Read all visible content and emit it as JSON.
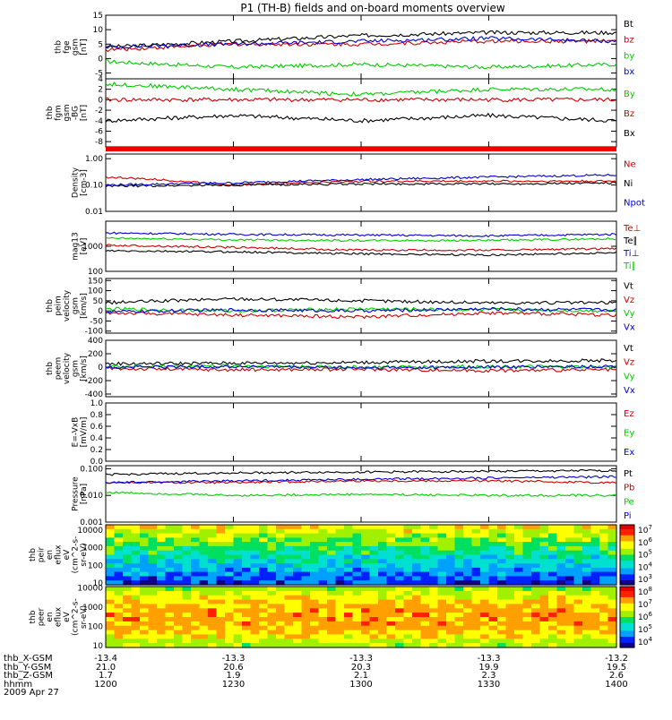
{
  "title": "P1 (TH-B) fields and on-board moments overview",
  "x_axis": {
    "label_rows": [
      "thb_X-GSM",
      "thb_Y-GSM",
      "thb_Z-GSM",
      "hhmm",
      "2009 Apr 27"
    ],
    "ticks": [
      {
        "values": [
          "-13.4",
          "21.0",
          "1.7",
          "1200"
        ]
      },
      {
        "values": [
          "-13.3",
          "20.6",
          "1.9",
          "1230"
        ]
      },
      {
        "values": [
          "-13.3",
          "20.3",
          "2.1",
          "1300"
        ]
      },
      {
        "values": [
          "-13.3",
          "19.9",
          "2.3",
          "1330"
        ]
      },
      {
        "values": [
          "-13.2",
          "19.5",
          "2.6",
          "1400"
        ]
      }
    ]
  },
  "colors": {
    "black": "#000000",
    "red": "#cc0000",
    "green": "#00cc00",
    "blue": "#0000cc"
  },
  "chart_data": [
    {
      "type": "line",
      "ylabel_lines": [
        "thb",
        "fge",
        "gsm",
        "[nT]"
      ],
      "ylim": [
        -7,
        15
      ],
      "yticks": [
        15,
        10,
        5,
        0,
        -5
      ],
      "x": [
        "1200",
        "1230",
        "1300",
        "1330",
        "1400"
      ],
      "series": [
        {
          "name": "Bt",
          "color": "#000000",
          "values": [
            4,
            6,
            8,
            9,
            9
          ]
        },
        {
          "name": "bz",
          "color": "#cc0000",
          "values": [
            3,
            5,
            5,
            6,
            6
          ]
        },
        {
          "name": "by",
          "color": "#00cc00",
          "values": [
            -1,
            -3,
            -2,
            -3,
            -2
          ]
        },
        {
          "name": "bx",
          "color": "#0000cc",
          "values": [
            4,
            5,
            6,
            7,
            6
          ]
        }
      ]
    },
    {
      "type": "line",
      "ylabel_lines": [
        "thb",
        "fgm",
        "gsm",
        "-BG",
        "[nT]"
      ],
      "ylim": [
        -9,
        4
      ],
      "yticks": [
        4,
        2,
        0,
        -2,
        -4,
        -6,
        -8
      ],
      "x": [
        "1200",
        "1230",
        "1300",
        "1330",
        "1400"
      ],
      "series": [
        {
          "name": "By",
          "color": "#00cc00",
          "values": [
            3,
            2,
            1,
            2,
            2
          ]
        },
        {
          "name": "Bz",
          "color": "#cc0000",
          "values": [
            0,
            0,
            0,
            0,
            0
          ]
        },
        {
          "name": "Bx",
          "color": "#000000",
          "values": [
            -4,
            -3,
            -4,
            -3,
            -4
          ]
        }
      ]
    },
    {
      "type": "line",
      "ylog": true,
      "ylabel_lines": [
        "Density",
        "[cm-3]"
      ],
      "ylim": [
        0.01,
        1.5
      ],
      "yticks": [
        "1.00",
        "0.10",
        "0.01"
      ],
      "x": [
        "1200",
        "1230",
        "1300",
        "1330",
        "1400"
      ],
      "series": [
        {
          "name": "Ne",
          "color": "#cc0000",
          "values": [
            0.2,
            0.1,
            0.14,
            0.14,
            0.14
          ]
        },
        {
          "name": "Ni",
          "color": "#000000",
          "values": [
            0.09,
            0.1,
            0.11,
            0.11,
            0.12
          ]
        },
        {
          "name": "Npot",
          "color": "#0000cc",
          "values": [
            0.1,
            0.12,
            0.16,
            0.2,
            0.24
          ]
        }
      ]
    },
    {
      "type": "line",
      "ylog": true,
      "ylabel_lines": [
        "mag13",
        "[eV]"
      ],
      "ylim": [
        100,
        10000
      ],
      "yticks": [
        "1000",
        "100"
      ],
      "x": [
        "1200",
        "1230",
        "1300",
        "1330",
        "1400"
      ],
      "series": [
        {
          "name": "Te⊥",
          "color": "#cc0000",
          "values": [
            1100,
            900,
            700,
            700,
            800
          ]
        },
        {
          "name": "Te∥",
          "color": "#000000",
          "values": [
            650,
            600,
            500,
            450,
            550
          ]
        },
        {
          "name": "Ti⊥",
          "color": "#0000cc",
          "values": [
            3400,
            3000,
            2800,
            2600,
            3000
          ]
        },
        {
          "name": "Ti∥",
          "color": "#00cc00",
          "values": [
            2100,
            1800,
            1700,
            1700,
            2000
          ]
        }
      ]
    },
    {
      "type": "line",
      "ylabel_lines": [
        "thb",
        "peim",
        "velocity",
        "gsm",
        "[km/s]"
      ],
      "ylim": [
        -110,
        160
      ],
      "yticks": [
        150,
        100,
        50,
        0,
        -50,
        -100
      ],
      "x": [
        "1200",
        "1230",
        "1300",
        "1330",
        "1400"
      ],
      "series": [
        {
          "name": "Vt",
          "color": "#000000",
          "values": [
            40,
            60,
            50,
            40,
            40
          ]
        },
        {
          "name": "Vz",
          "color": "#cc0000",
          "values": [
            -10,
            -20,
            -30,
            -10,
            -20
          ]
        },
        {
          "name": "Vy",
          "color": "#00cc00",
          "values": [
            10,
            0,
            10,
            5,
            0
          ]
        },
        {
          "name": "Vx",
          "color": "#0000cc",
          "values": [
            -5,
            5,
            0,
            10,
            5
          ]
        }
      ]
    },
    {
      "type": "line",
      "ylabel_lines": [
        "thb",
        "peem",
        "velocity",
        "gsm",
        "[km/s]"
      ],
      "ylim": [
        -440,
        400
      ],
      "yticks": [
        400,
        200,
        0,
        -200,
        -400
      ],
      "x": [
        "1200",
        "1230",
        "1300",
        "1330",
        "1400"
      ],
      "series": [
        {
          "name": "Vt",
          "color": "#000000",
          "values": [
            50,
            60,
            70,
            90,
            100
          ]
        },
        {
          "name": "Vz",
          "color": "#cc0000",
          "values": [
            -20,
            -40,
            -30,
            -50,
            -40
          ]
        },
        {
          "name": "Vy",
          "color": "#00cc00",
          "values": [
            10,
            20,
            0,
            10,
            0
          ]
        },
        {
          "name": "Vx",
          "color": "#0000cc",
          "values": [
            0,
            10,
            -10,
            0,
            10
          ]
        }
      ]
    },
    {
      "type": "line",
      "ylabel_lines": [
        "E=-VxB",
        "[mV/m]"
      ],
      "ylim": [
        0,
        1
      ],
      "yticks": [
        "1.0",
        "0.8",
        "0.6",
        "0.4",
        "0.2",
        "0.0"
      ],
      "x": [],
      "series": [
        {
          "name": "Ez",
          "color": "#cc0000",
          "values": []
        },
        {
          "name": "Ey",
          "color": "#00cc00",
          "values": []
        },
        {
          "name": "Ex",
          "color": "#0000cc",
          "values": []
        }
      ]
    },
    {
      "type": "line",
      "ylog": true,
      "ylabel_lines": [
        "Pressure",
        "[nPa]"
      ],
      "ylim": [
        0.001,
        0.13
      ],
      "yticks": [
        "0.100",
        "0.010",
        "0.001"
      ],
      "x": [
        "1200",
        "1230",
        "1300",
        "1330",
        "1400"
      ],
      "series": [
        {
          "name": "Pt",
          "color": "#000000",
          "values": [
            0.06,
            0.07,
            0.075,
            0.08,
            0.085
          ]
        },
        {
          "name": "Pb",
          "color": "#cc0000",
          "values": [
            0.03,
            0.03,
            0.035,
            0.035,
            0.03
          ]
        },
        {
          "name": "Pe",
          "color": "#00cc00",
          "values": [
            0.013,
            0.01,
            0.011,
            0.01,
            0.01
          ]
        },
        {
          "name": "Pi",
          "color": "#0000cc",
          "values": [
            0.03,
            0.035,
            0.04,
            0.045,
            0.05
          ]
        }
      ]
    },
    {
      "type": "heatmap",
      "ylog": true,
      "ylabel_lines": [
        "thb",
        "peir",
        "en",
        "eflux",
        "eV",
        "(cm^2-s-",
        "sr-eV)"
      ],
      "ylim": [
        8,
        20000
      ],
      "yticks": [
        "10000",
        "1000",
        "100",
        "10"
      ],
      "colorbar_ticks": [
        "10^7",
        "10^6",
        "10^5",
        "10^4",
        "10^3"
      ],
      "colorbar_range": [
        1000,
        10000000
      ]
    },
    {
      "type": "heatmap",
      "ylog": true,
      "ylabel_lines": [
        "thb",
        "peer",
        "en",
        "eflux",
        "eV",
        "(cm^2-s-",
        "sr-eV)"
      ],
      "ylim": [
        8,
        12000
      ],
      "yticks": [
        "10000",
        "1000",
        "100",
        "10"
      ],
      "colorbar_ticks": [
        "10^8",
        "10^7",
        "10^6",
        "10^5",
        "10^4"
      ],
      "colorbar_range": [
        10000,
        100000000
      ]
    }
  ]
}
